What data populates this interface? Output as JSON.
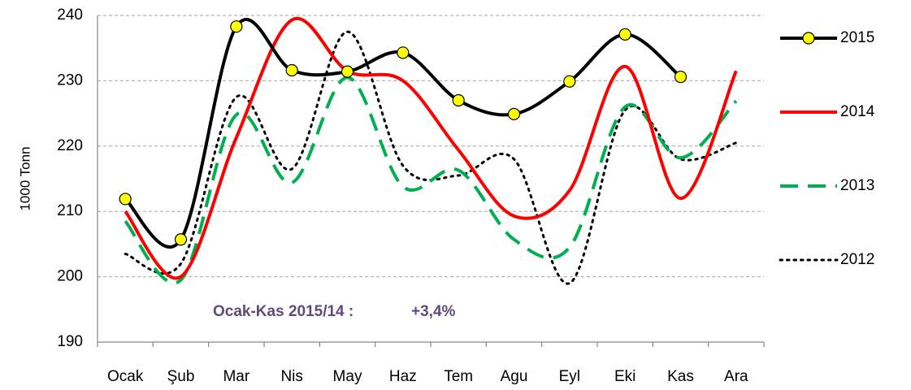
{
  "chart_data": {
    "type": "line",
    "y_label": "1000 Tonn",
    "annotations": [
      "Ocak-Kas 2015/14 :",
      "+3,4%"
    ],
    "categories": [
      "Ocak",
      "Şub",
      "Mar",
      "Nis",
      "May",
      "Haz",
      "Tem",
      "Agu",
      "Eyl",
      "Eki",
      "Kas",
      "Ara"
    ],
    "series": [
      {
        "name": "2015",
        "color": "#000000",
        "dash": "solid",
        "marker": true,
        "values": [
          211.9,
          205.7,
          238.3,
          231.6,
          231.4,
          234.3,
          227,
          224.9,
          229.9,
          237.1,
          230.6,
          null
        ]
      },
      {
        "name": "2014",
        "color": "#ff0000",
        "dash": "solid",
        "marker": false,
        "values": [
          210,
          200,
          221.3,
          239.3,
          231.5,
          230,
          219.4,
          209.3,
          213.2,
          232.2,
          212,
          231.5
        ]
      },
      {
        "name": "2013",
        "color": "#00b050",
        "dash": "dashed",
        "marker": false,
        "values": [
          208.5,
          199.5,
          224.8,
          214.4,
          230.5,
          213.8,
          216.3,
          205.7,
          204.5,
          226,
          218.2,
          226.9
        ]
      },
      {
        "name": "2012",
        "color": "#000000",
        "dash": "dotted",
        "marker": false,
        "values": [
          203.5,
          202,
          227.5,
          216.5,
          237.5,
          217,
          215.5,
          218,
          199,
          225.5,
          218,
          220.5
        ]
      }
    ],
    "ylim": [
      190,
      240
    ],
    "yticks": [
      190,
      200,
      210,
      220,
      230,
      240
    ],
    "grid": true
  }
}
